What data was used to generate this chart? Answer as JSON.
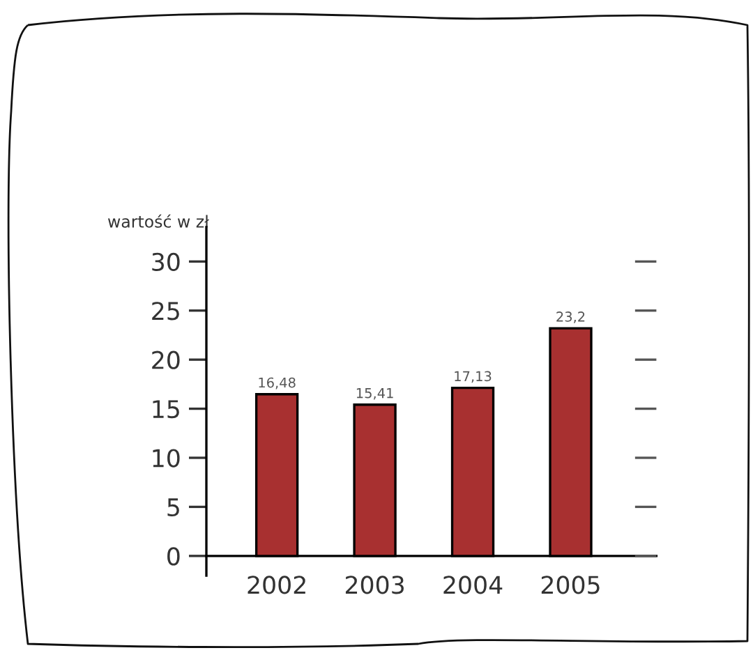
{
  "chart_data": {
    "type": "bar",
    "ylabel": "wartość w zł",
    "categories": [
      "2002",
      "2003",
      "2004",
      "2005"
    ],
    "values": [
      16.48,
      15.41,
      17.13,
      23.2
    ],
    "color": "#a83030",
    "value_labels": [
      "16,48",
      "15,41",
      "17,13",
      "23,2"
    ],
    "ylim": [
      -2,
      33.5
    ],
    "yticks": [
      0,
      5,
      10,
      15,
      20,
      25,
      30
    ]
  }
}
